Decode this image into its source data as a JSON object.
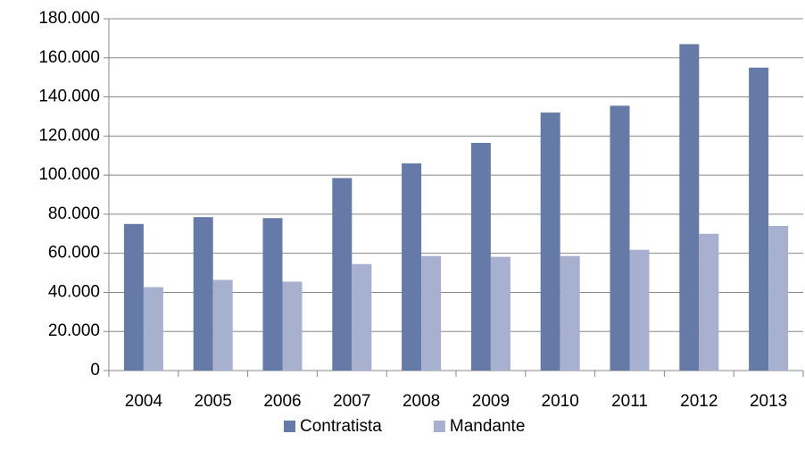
{
  "chart_data": {
    "type": "bar",
    "categories": [
      "2004",
      "2005",
      "2006",
      "2007",
      "2008",
      "2009",
      "2010",
      "2011",
      "2012",
      "2013"
    ],
    "series": [
      {
        "name": "Contratista",
        "color": "#657aa6",
        "values": [
          75000,
          78500,
          78000,
          98500,
          106000,
          116500,
          132000,
          135500,
          167000,
          155000
        ]
      },
      {
        "name": "Mandante",
        "color": "#a7b1cf",
        "values": [
          42700,
          46400,
          45500,
          54500,
          58600,
          58200,
          58600,
          61800,
          70000,
          74000
        ]
      }
    ],
    "ylim": [
      0,
      180000
    ],
    "yticks": [
      0,
      {
        "value": 20000,
        "label": "20.000"
      },
      {
        "value": 40000,
        "label": "40.000"
      },
      {
        "value": 60000,
        "label": "60.000"
      },
      {
        "value": 80000,
        "label": "80.000"
      },
      {
        "value": 100000,
        "label": "100.000"
      },
      {
        "value": 120000,
        "label": "120.000"
      },
      {
        "value": 140000,
        "label": "140.000"
      },
      {
        "value": 160000,
        "label": "160.000"
      },
      {
        "value": 180000,
        "label": "180.000"
      }
    ],
    "grid": true,
    "legend": "bottom"
  }
}
